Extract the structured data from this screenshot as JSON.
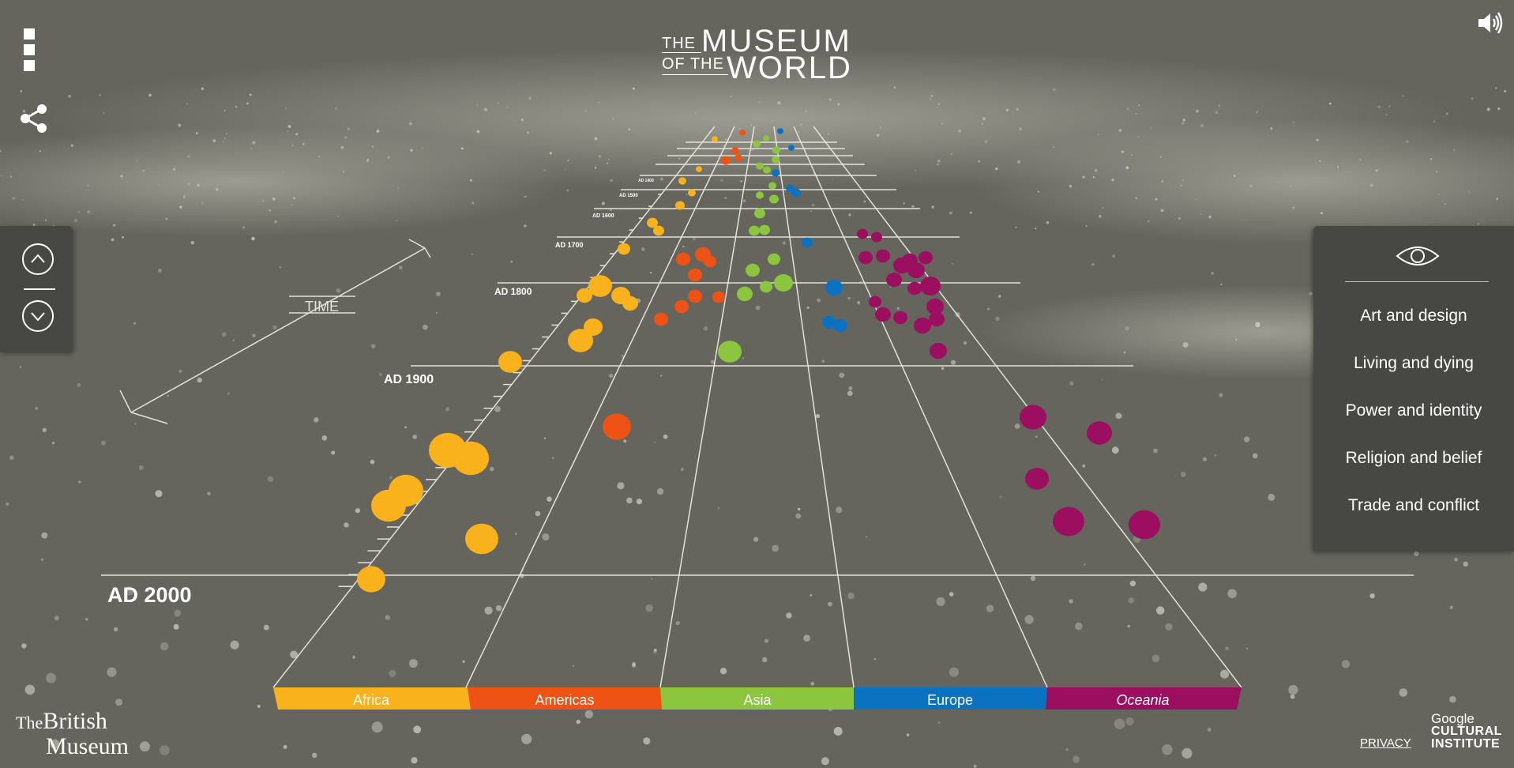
{
  "header": {
    "title_small_1": "THE",
    "title_big_1": "MUSEUM",
    "title_small_2": "OF THE",
    "title_big_2": "WORLD"
  },
  "icons": {
    "menu": "menu-icon",
    "share": "share-icon",
    "sound": "speaker-icon",
    "up": "chevron-up-icon",
    "down": "chevron-down-icon",
    "eye": "eye-icon"
  },
  "timeline": {
    "axis_label": "TIME",
    "year_labels": [
      "AD 2000",
      "AD 1900",
      "AD 1800",
      "AD 1700",
      "AD 1600",
      "AD 1500",
      "AD 1400"
    ]
  },
  "regions": [
    {
      "label": "Africa",
      "color": "#f9b21b"
    },
    {
      "label": "Americas",
      "color": "#ee5214"
    },
    {
      "label": "Asia",
      "color": "#8bc63e"
    },
    {
      "label": "Europe",
      "color": "#0b72c2"
    },
    {
      "label": "Oceania",
      "color": "#9c0e5f"
    }
  ],
  "themes": {
    "items": [
      "Art and design",
      "Living and dying",
      "Power and identity",
      "Religion and belief",
      "Trade and conflict"
    ]
  },
  "footer": {
    "museum_the": "The",
    "museum_line1": "British",
    "museum_line2": "Museum",
    "privacy": "PRIVACY",
    "partner_line1": "Google",
    "partner_line2": "CULTURAL",
    "partner_line3": "INSTITUTE"
  }
}
